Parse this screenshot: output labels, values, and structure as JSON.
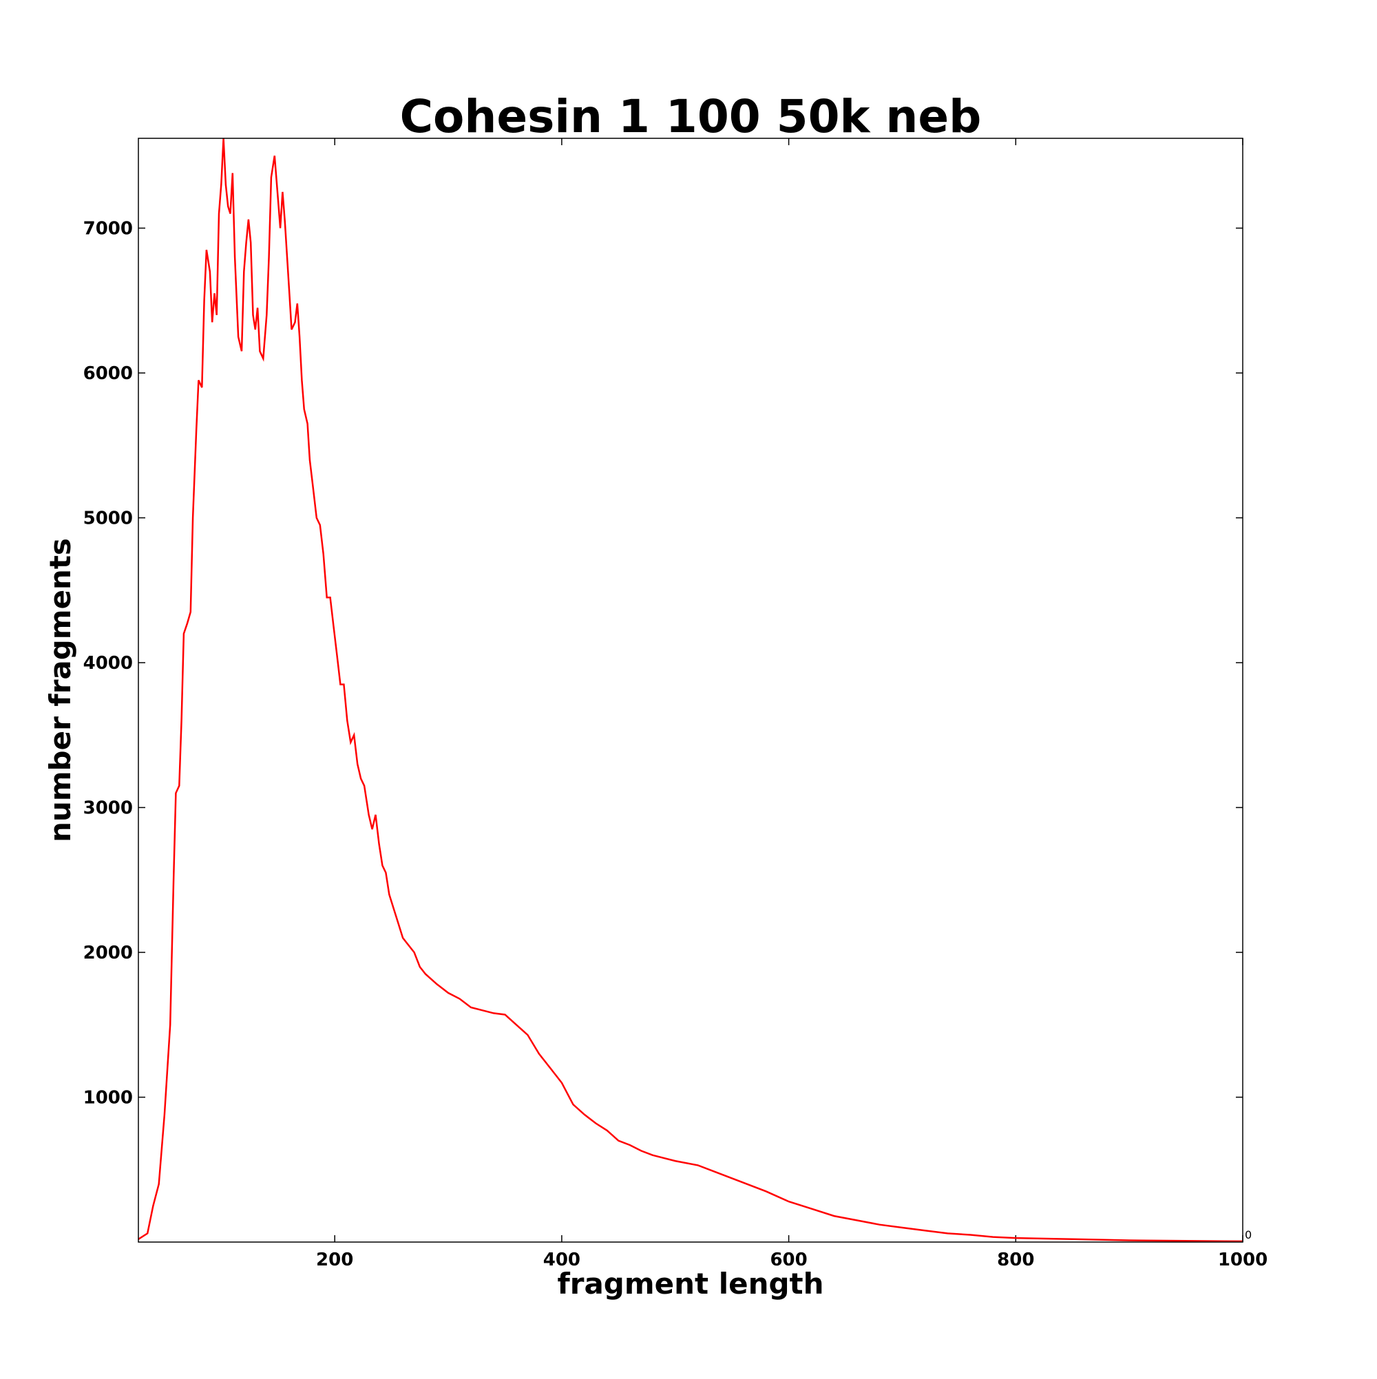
{
  "chart_data": {
    "type": "line",
    "title": "Cohesin 1 100 50k neb",
    "xlabel": "fragment length",
    "ylabel": "number fragments",
    "annotation": "0",
    "xlim": [
      27,
      1000
    ],
    "ylim": [
      0,
      7620
    ],
    "xticks": [
      200,
      400,
      600,
      800,
      1000
    ],
    "yticks": [
      1000,
      2000,
      3000,
      4000,
      5000,
      6000,
      7000
    ],
    "series": [
      {
        "color": "#ff0000",
        "x": [
          27,
          35,
          40,
          45,
          50,
          55,
          58,
          60,
          63,
          65,
          67,
          70,
          73,
          75,
          78,
          80,
          83,
          85,
          87,
          90,
          92,
          94,
          96,
          98,
          100,
          102,
          104,
          106,
          108,
          110,
          112,
          115,
          118,
          120,
          122,
          124,
          126,
          128,
          130,
          132,
          134,
          137,
          140,
          142,
          144,
          147,
          150,
          152,
          154,
          156,
          158,
          160,
          162,
          165,
          167,
          169,
          171,
          173,
          176,
          178,
          181,
          184,
          187,
          190,
          193,
          196,
          199,
          202,
          205,
          208,
          211,
          214,
          217,
          220,
          223,
          226,
          230,
          233,
          236,
          239,
          242,
          245,
          248,
          252,
          256,
          260,
          265,
          270,
          275,
          280,
          290,
          300,
          310,
          320,
          330,
          340,
          350,
          360,
          370,
          380,
          390,
          400,
          410,
          420,
          430,
          440,
          450,
          460,
          470,
          480,
          490,
          500,
          520,
          540,
          560,
          580,
          600,
          620,
          640,
          660,
          680,
          700,
          720,
          740,
          760,
          780,
          800,
          850,
          900,
          950,
          1000
        ],
        "values": [
          20,
          60,
          250,
          400,
          880,
          1500,
          2500,
          3100,
          3150,
          3600,
          4200,
          4270,
          4350,
          5000,
          5600,
          5950,
          5900,
          6500,
          6850,
          6700,
          6350,
          6550,
          6400,
          7100,
          7300,
          7620,
          7300,
          7150,
          7100,
          7380,
          6800,
          6250,
          6150,
          6700,
          6900,
          7060,
          6900,
          6400,
          6300,
          6450,
          6150,
          6100,
          6400,
          6800,
          7350,
          7500,
          7200,
          7000,
          7250,
          7050,
          6800,
          6550,
          6300,
          6350,
          6480,
          6250,
          5950,
          5750,
          5650,
          5400,
          5200,
          5000,
          4950,
          4750,
          4450,
          4450,
          4250,
          4050,
          3850,
          3850,
          3600,
          3450,
          3500,
          3300,
          3200,
          3150,
          2950,
          2850,
          2950,
          2750,
          2600,
          2550,
          2400,
          2300,
          2200,
          2100,
          2050,
          2000,
          1900,
          1850,
          1780,
          1720,
          1680,
          1620,
          1600,
          1580,
          1570,
          1500,
          1430,
          1300,
          1200,
          1100,
          950,
          880,
          820,
          770,
          700,
          670,
          630,
          600,
          580,
          560,
          530,
          470,
          410,
          350,
          280,
          230,
          180,
          150,
          120,
          100,
          80,
          60,
          50,
          35,
          28,
          20,
          12,
          8,
          5
        ]
      }
    ]
  }
}
